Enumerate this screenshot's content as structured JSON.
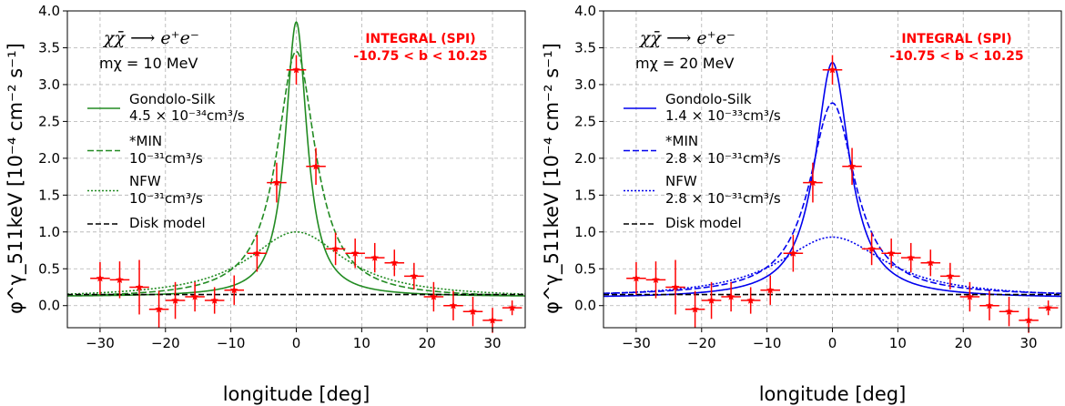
{
  "chart_data": [
    {
      "type": "line",
      "process_label": "χχ̄ ⟶ e⁺e⁻",
      "mass_label": "mχ = 10 MeV",
      "instrument_label": "INTEGRAL (SPI)",
      "latitude_label": "-10.75  <  b  <  10.25",
      "xlabel": "longitude [deg]",
      "ylabel": "φ^γ_511keV [10⁻⁴ cm⁻² s⁻¹]",
      "xlim": [
        -35,
        35
      ],
      "ylim": [
        -0.3,
        4.0
      ],
      "xticks": [
        "−30",
        "−20",
        "−10",
        "0",
        "10",
        "20",
        "30"
      ],
      "yticks": [
        "0.0",
        "0.5",
        "1.0",
        "1.5",
        "2.0",
        "2.5",
        "3.0",
        "3.5",
        "4.0"
      ],
      "grid": true,
      "legend_position": "center-left",
      "color": "#228b22",
      "models": [
        {
          "name": "Gondolo-Silk",
          "rate": "4.5 × 10⁻³⁴cm³/s",
          "style": "solid",
          "peak": 3.85,
          "width": 2.0,
          "base": 0.12
        },
        {
          "name": "*MIN",
          "rate": "10⁻³¹cm³/s",
          "style": "dashed",
          "peak": 3.45,
          "width": 3.6,
          "base": 0.1
        },
        {
          "name": "NFW",
          "rate": "10⁻³¹cm³/s",
          "style": "dotted",
          "peak": 1.0,
          "width": 9.0,
          "base": 0.1
        },
        {
          "name": "Disk model",
          "rate": "",
          "style": "dashed-black",
          "value": 0.15
        }
      ],
      "data_points": [
        {
          "x": -30,
          "y": 0.37,
          "yerr": 0.22,
          "xerr": 1.5
        },
        {
          "x": -27,
          "y": 0.35,
          "yerr": 0.25,
          "xerr": 1.5
        },
        {
          "x": -24,
          "y": 0.25,
          "yerr": 0.37,
          "xerr": 1.5
        },
        {
          "x": -21,
          "y": -0.05,
          "yerr": 0.25,
          "xerr": 1.5
        },
        {
          "x": -18.5,
          "y": 0.07,
          "yerr": 0.25,
          "xerr": 1.5
        },
        {
          "x": -15.5,
          "y": 0.12,
          "yerr": 0.2,
          "xerr": 1.5
        },
        {
          "x": -12.5,
          "y": 0.07,
          "yerr": 0.18,
          "xerr": 1.5
        },
        {
          "x": -9.5,
          "y": 0.21,
          "yerr": 0.2,
          "xerr": 1.5
        },
        {
          "x": -6,
          "y": 0.71,
          "yerr": 0.25,
          "xerr": 1.5
        },
        {
          "x": -3,
          "y": 1.67,
          "yerr": 0.27,
          "xerr": 1.5
        },
        {
          "x": 0,
          "y": 3.2,
          "yerr": 0.2,
          "xerr": 1.5
        },
        {
          "x": 3,
          "y": 1.89,
          "yerr": 0.25,
          "xerr": 1.5
        },
        {
          "x": 6,
          "y": 0.77,
          "yerr": 0.22,
          "xerr": 1.5
        },
        {
          "x": 9,
          "y": 0.71,
          "yerr": 0.2,
          "xerr": 1.5
        },
        {
          "x": 12,
          "y": 0.65,
          "yerr": 0.2,
          "xerr": 1.5
        },
        {
          "x": 15,
          "y": 0.58,
          "yerr": 0.18,
          "xerr": 1.5
        },
        {
          "x": 18,
          "y": 0.4,
          "yerr": 0.18,
          "xerr": 1.5
        },
        {
          "x": 21,
          "y": 0.12,
          "yerr": 0.2,
          "xerr": 1.5
        },
        {
          "x": 24,
          "y": 0.0,
          "yerr": 0.2,
          "xerr": 1.5
        },
        {
          "x": 27,
          "y": -0.08,
          "yerr": 0.2,
          "xerr": 1.5
        },
        {
          "x": 30,
          "y": -0.2,
          "yerr": 0.17,
          "xerr": 1.5
        },
        {
          "x": 33,
          "y": -0.03,
          "yerr": 0.1,
          "xerr": 1.5
        }
      ]
    },
    {
      "type": "line",
      "process_label": "χχ̄ ⟶ e⁺e⁻",
      "mass_label": "mχ = 20 MeV",
      "instrument_label": "INTEGRAL (SPI)",
      "latitude_label": "-10.75  <  b  <  10.25",
      "xlabel": "longitude [deg]",
      "ylabel": "φ^γ_511keV [10⁻⁴ cm⁻² s⁻¹]",
      "xlim": [
        -35,
        35
      ],
      "ylim": [
        -0.3,
        4.0
      ],
      "xticks": [
        "−30",
        "−20",
        "−10",
        "0",
        "10",
        "20",
        "30"
      ],
      "yticks": [
        "0.0",
        "0.5",
        "1.0",
        "1.5",
        "2.0",
        "2.5",
        "3.0",
        "3.5",
        "4.0"
      ],
      "grid": true,
      "legend_position": "center-left",
      "color": "#0000ee",
      "models": [
        {
          "name": "Gondolo-Silk",
          "rate": "1.4 × 10⁻³³cm³/s",
          "style": "solid",
          "peak": 3.3,
          "width": 3.2,
          "base": 0.1
        },
        {
          "name": "*MIN",
          "rate": "2.8 × 10⁻³¹cm³/s",
          "style": "dashed",
          "peak": 2.75,
          "width": 4.2,
          "base": 0.13
        },
        {
          "name": "NFW",
          "rate": "2.8 × 10⁻³¹cm³/s",
          "style": "dotted",
          "peak": 0.93,
          "width": 10.0,
          "base": 0.1
        },
        {
          "name": "Disk model",
          "rate": "",
          "style": "dashed-black",
          "value": 0.15
        }
      ],
      "data_points": [
        {
          "x": -30,
          "y": 0.37,
          "yerr": 0.22,
          "xerr": 1.5
        },
        {
          "x": -27,
          "y": 0.35,
          "yerr": 0.25,
          "xerr": 1.5
        },
        {
          "x": -24,
          "y": 0.25,
          "yerr": 0.37,
          "xerr": 1.5
        },
        {
          "x": -21,
          "y": -0.05,
          "yerr": 0.25,
          "xerr": 1.5
        },
        {
          "x": -18.5,
          "y": 0.07,
          "yerr": 0.25,
          "xerr": 1.5
        },
        {
          "x": -15.5,
          "y": 0.12,
          "yerr": 0.2,
          "xerr": 1.5
        },
        {
          "x": -12.5,
          "y": 0.07,
          "yerr": 0.18,
          "xerr": 1.5
        },
        {
          "x": -9.5,
          "y": 0.21,
          "yerr": 0.2,
          "xerr": 1.5
        },
        {
          "x": -6,
          "y": 0.71,
          "yerr": 0.25,
          "xerr": 1.5
        },
        {
          "x": -3,
          "y": 1.67,
          "yerr": 0.27,
          "xerr": 1.5
        },
        {
          "x": 0,
          "y": 3.2,
          "yerr": 0.2,
          "xerr": 1.5
        },
        {
          "x": 3,
          "y": 1.89,
          "yerr": 0.25,
          "xerr": 1.5
        },
        {
          "x": 6,
          "y": 0.77,
          "yerr": 0.22,
          "xerr": 1.5
        },
        {
          "x": 9,
          "y": 0.71,
          "yerr": 0.2,
          "xerr": 1.5
        },
        {
          "x": 12,
          "y": 0.65,
          "yerr": 0.2,
          "xerr": 1.5
        },
        {
          "x": 15,
          "y": 0.58,
          "yerr": 0.18,
          "xerr": 1.5
        },
        {
          "x": 18,
          "y": 0.4,
          "yerr": 0.18,
          "xerr": 1.5
        },
        {
          "x": 21,
          "y": 0.12,
          "yerr": 0.2,
          "xerr": 1.5
        },
        {
          "x": 24,
          "y": 0.0,
          "yerr": 0.2,
          "xerr": 1.5
        },
        {
          "x": 27,
          "y": -0.08,
          "yerr": 0.2,
          "xerr": 1.5
        },
        {
          "x": 30,
          "y": -0.2,
          "yerr": 0.17,
          "xerr": 1.5
        },
        {
          "x": 33,
          "y": -0.03,
          "yerr": 0.1,
          "xerr": 1.5
        }
      ]
    }
  ]
}
